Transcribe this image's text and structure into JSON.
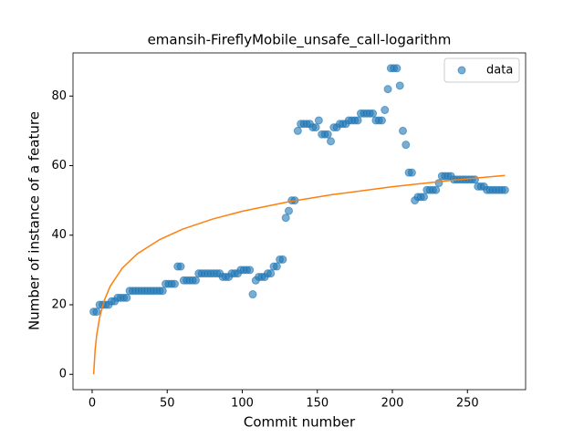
{
  "chart_data": {
    "type": "scatter",
    "title": "emansih-FireflyMobile_unsafe_call-logarithm",
    "xlabel": "Commit number",
    "ylabel": "Number of instance of a feature",
    "xlim": [
      -12.75,
      288.75
    ],
    "xticks": [
      0,
      50,
      100,
      150,
      200,
      250
    ],
    "ylim": [
      -4.4,
      92.4
    ],
    "yticks": [
      0,
      20,
      40,
      60,
      80
    ],
    "legend": "upper right",
    "series": [
      {
        "name": "data",
        "type": "scatter",
        "color": "#1f77b4",
        "x": [
          1,
          3,
          5,
          7,
          9,
          11,
          13,
          15,
          17,
          19,
          21,
          23,
          25,
          27,
          29,
          31,
          33,
          35,
          37,
          39,
          41,
          43,
          45,
          47,
          49,
          51,
          53,
          55,
          57,
          59,
          61,
          63,
          65,
          67,
          69,
          71,
          73,
          75,
          77,
          79,
          81,
          83,
          85,
          87,
          89,
          91,
          93,
          95,
          97,
          99,
          101,
          103,
          105,
          107,
          109,
          111,
          113,
          115,
          117,
          119,
          121,
          123,
          125,
          127,
          129,
          131,
          133,
          135,
          137,
          139,
          141,
          143,
          145,
          147,
          149,
          151,
          153,
          155,
          157,
          159,
          161,
          163,
          165,
          167,
          169,
          171,
          173,
          175,
          177,
          179,
          181,
          183,
          185,
          187,
          189,
          191,
          193,
          195,
          197,
          199,
          201,
          203,
          205,
          207,
          209,
          211,
          213,
          215,
          217,
          219,
          221,
          223,
          225,
          227,
          229,
          231,
          233,
          235,
          237,
          239,
          241,
          243,
          245,
          247,
          249,
          251,
          253,
          255,
          257,
          259,
          261,
          263,
          265,
          267,
          269,
          271,
          273,
          275
        ],
        "values": [
          18,
          18,
          20,
          20,
          20,
          20,
          21,
          21,
          22,
          22,
          22,
          22,
          24,
          24,
          24,
          24,
          24,
          24,
          24,
          24,
          24,
          24,
          24,
          24,
          26,
          26,
          26,
          26,
          31,
          31,
          27,
          27,
          27,
          27,
          27,
          29,
          29,
          29,
          29,
          29,
          29,
          29,
          29,
          28,
          28,
          28,
          29,
          29,
          29,
          30,
          30,
          30,
          30,
          23,
          27,
          28,
          28,
          28,
          29,
          29,
          31,
          31,
          33,
          33,
          45,
          47,
          50,
          50,
          70,
          72,
          72,
          72,
          72,
          71,
          71,
          73,
          69,
          69,
          69,
          67,
          71,
          71,
          72,
          72,
          72,
          73,
          73,
          73,
          73,
          75,
          75,
          75,
          75,
          75,
          73,
          73,
          73,
          76,
          82,
          88,
          88,
          88,
          83,
          70,
          66,
          58,
          58,
          50,
          51,
          51,
          51,
          53,
          53,
          53,
          53,
          55,
          57,
          57,
          57,
          57,
          56,
          56,
          56,
          56,
          56,
          56,
          56,
          56,
          54,
          54,
          54,
          53,
          53,
          53,
          53,
          53,
          53,
          53
        ]
      },
      {
        "type": "line",
        "color": "#ff7f0e",
        "x": [
          1,
          2,
          3,
          5,
          8,
          12,
          20,
          30,
          45,
          60,
          80,
          100,
          130,
          160,
          200,
          240,
          275
        ],
        "values": [
          0,
          7.06,
          11.18,
          16.38,
          21.17,
          25.3,
          30.5,
          34.62,
          38.75,
          41.68,
          44.61,
          46.88,
          49.55,
          51.66,
          53.94,
          55.79,
          57.18
        ]
      }
    ]
  }
}
